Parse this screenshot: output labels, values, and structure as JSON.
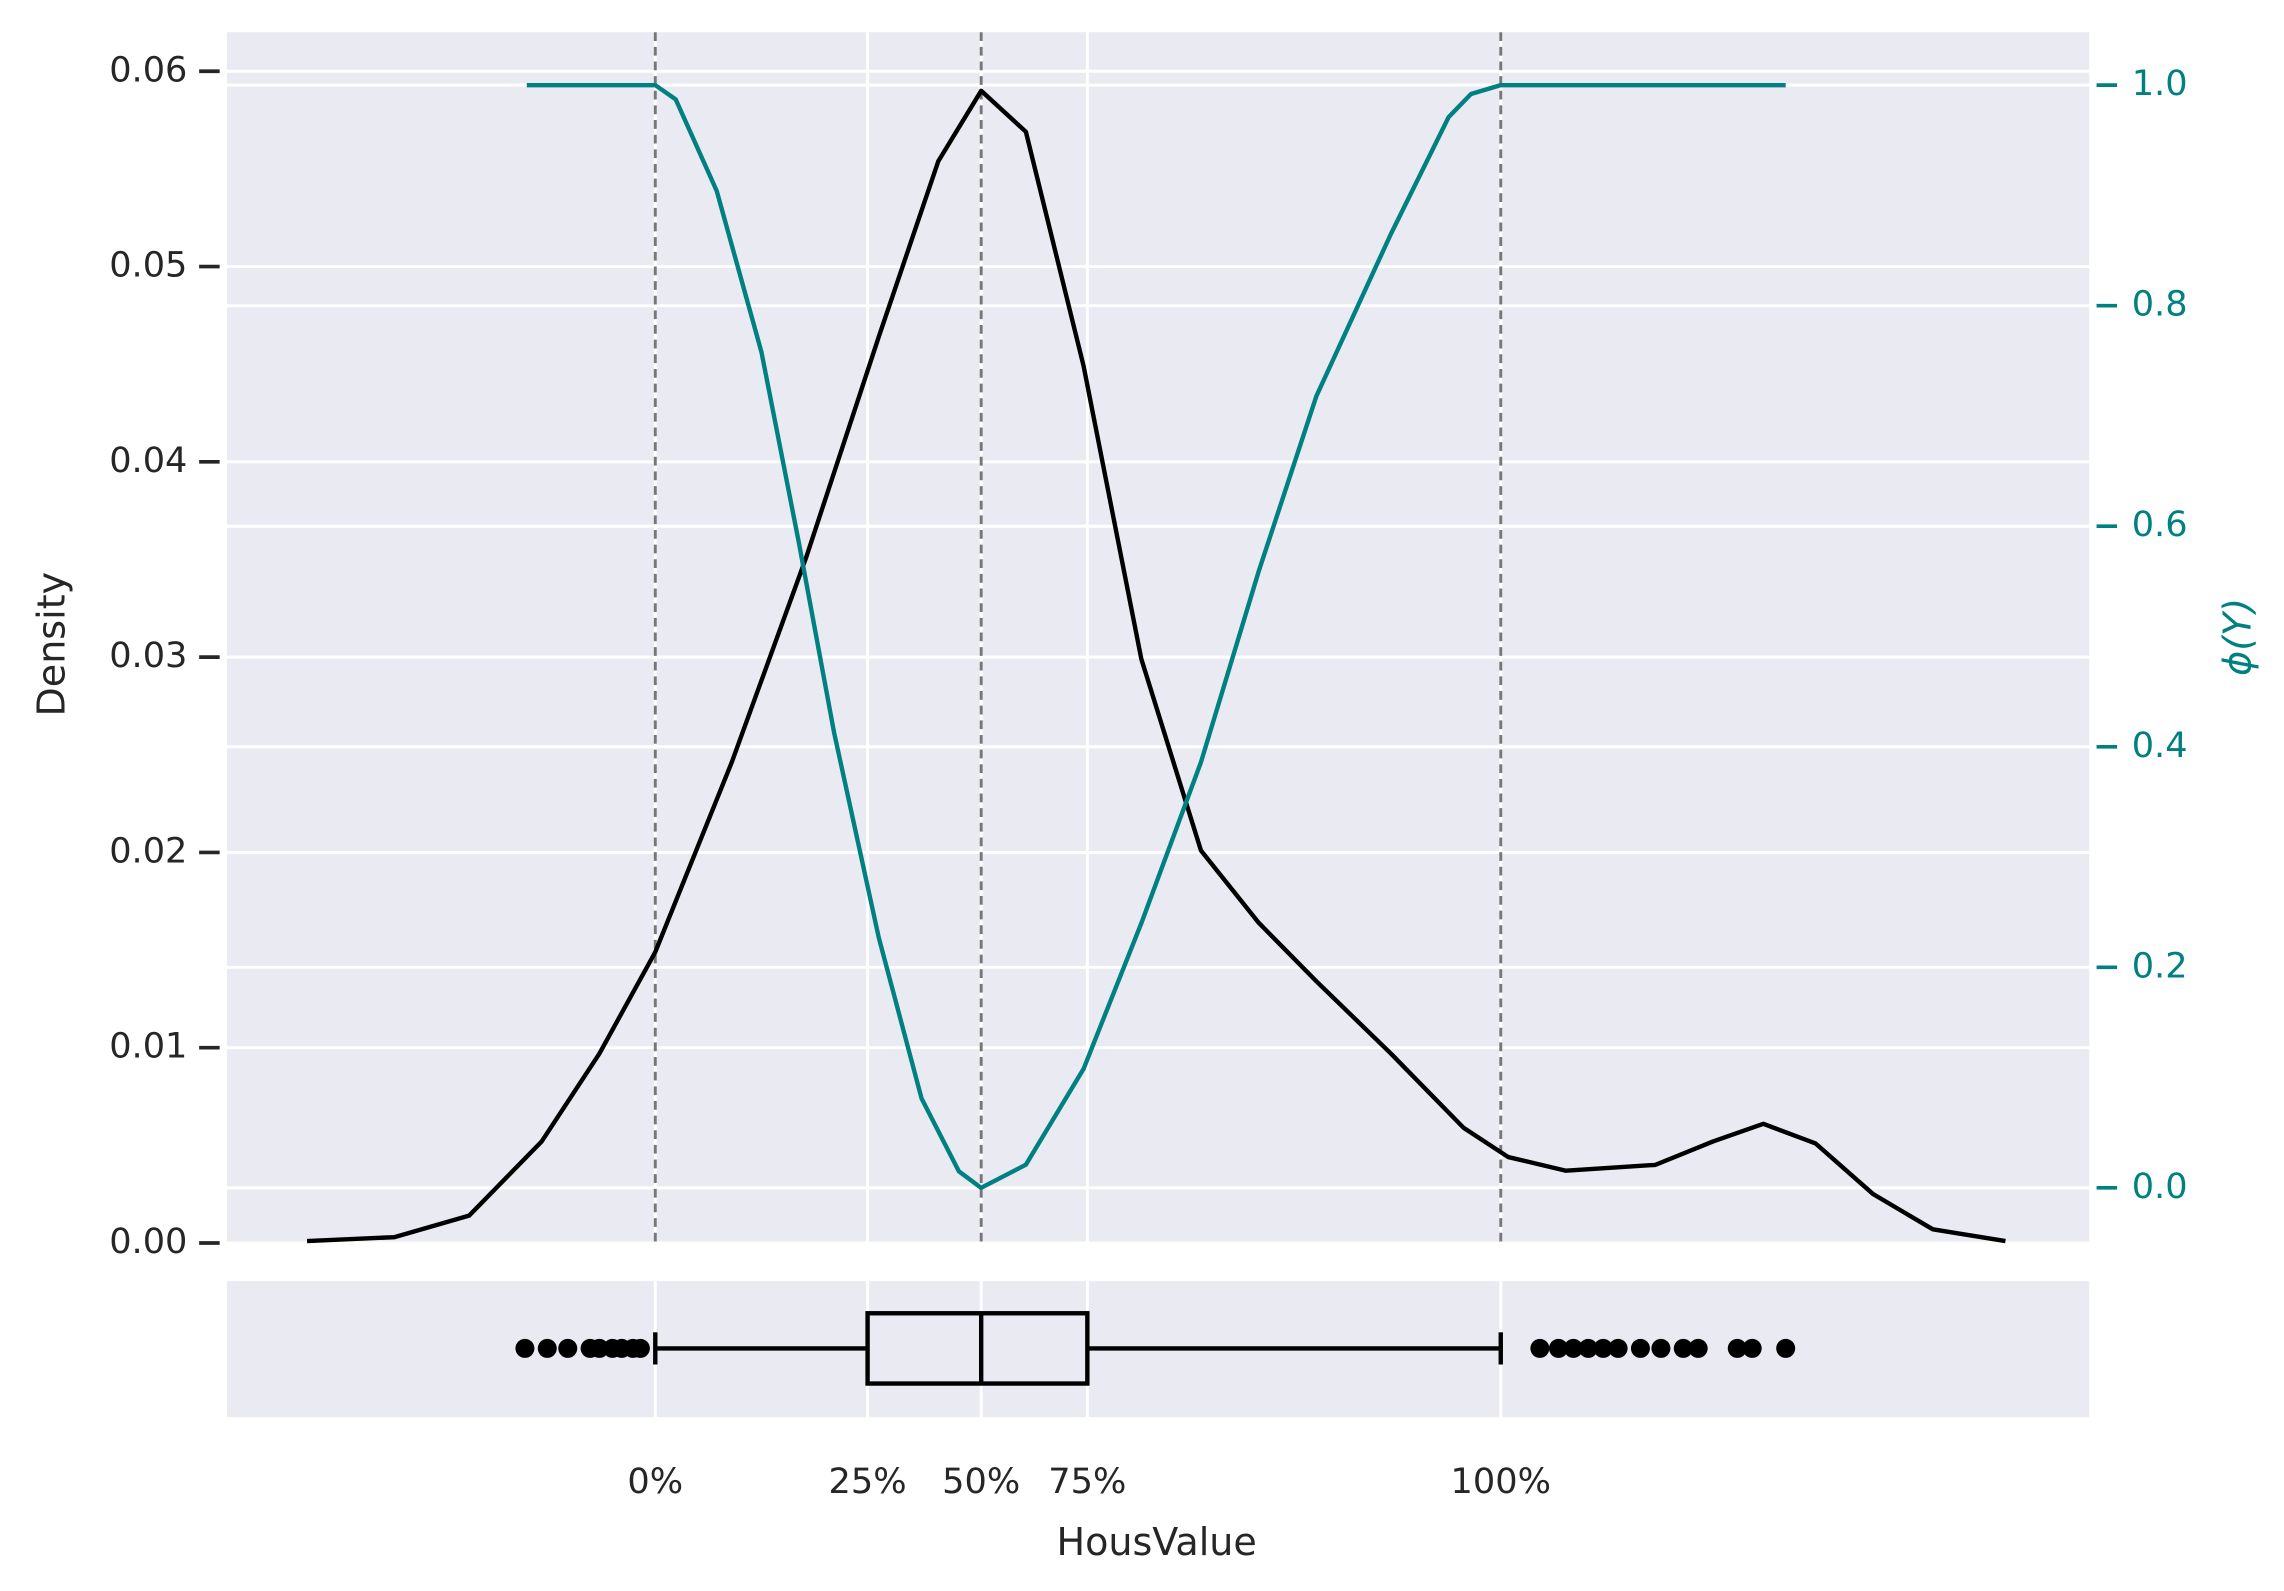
{
  "chart_data": {
    "type": "density_box",
    "x_label": "HousValue",
    "y_label": "Density",
    "y2_label": "ϕ(Y)",
    "grid": true,
    "xlim": [
      0,
      100
    ],
    "xticks": [
      {
        "value": 23.0,
        "label": "0%"
      },
      {
        "value": 34.4,
        "label": "25%"
      },
      {
        "value": 40.5,
        "label": "50%"
      },
      {
        "value": 46.2,
        "label": "75%"
      },
      {
        "value": 68.4,
        "label": "100%"
      }
    ],
    "ylim": [
      0,
      0.062
    ],
    "yticks": [
      {
        "value": 0,
        "label": "0.00"
      },
      0.01,
      0.02,
      0.03,
      0.04,
      0.05,
      0.06
    ],
    "y2lim": [
      -0.05,
      1.048
    ],
    "y2ticks": [
      {
        "value": 0,
        "label": "0.0"
      },
      0.2,
      0.4,
      0.6,
      0.8,
      {
        "value": 1,
        "label": "1.0"
      }
    ],
    "quantile_lines": [
      23.0,
      40.5,
      68.4
    ],
    "density": {
      "color": "#000000",
      "x": [
        4.3,
        9.0,
        13.0,
        16.9,
        20.0,
        23.0,
        27.1,
        31.1,
        35.0,
        38.2,
        40.5,
        42.9,
        46.0,
        49.1,
        52.3,
        55.4,
        58.5,
        62.5,
        66.4,
        68.8,
        71.9,
        76.7,
        79.8,
        82.5,
        85.3,
        88.4,
        91.6,
        95.5
      ],
      "y": [
        0.0001,
        0.0003,
        0.0014,
        0.0052,
        0.0097,
        0.0149,
        0.0246,
        0.0351,
        0.0464,
        0.0554,
        0.059,
        0.0569,
        0.0449,
        0.0299,
        0.0201,
        0.0164,
        0.0134,
        0.0097,
        0.0059,
        0.0044,
        0.0037,
        0.004,
        0.0052,
        0.0061,
        0.0051,
        0.0025,
        0.0007,
        0.0001
      ]
    },
    "phi": {
      "color": "#008080",
      "axis": "y2",
      "x": [
        16.1,
        23.0,
        24.1,
        26.3,
        28.7,
        30.7,
        32.6,
        35.0,
        37.3,
        39.3,
        40.5,
        42.9,
        46.0,
        49.1,
        52.3,
        55.4,
        58.5,
        62.5,
        65.6,
        66.8,
        68.4,
        83.7
      ],
      "y": [
        1.0,
        1.0,
        0.987,
        0.904,
        0.758,
        0.586,
        0.413,
        0.227,
        0.081,
        0.015,
        0.0,
        0.021,
        0.108,
        0.24,
        0.386,
        0.559,
        0.718,
        0.865,
        0.971,
        0.992,
        1.0,
        1.0
      ]
    },
    "box": {
      "whislo": 23.0,
      "q1": 34.4,
      "med": 40.5,
      "q3": 46.2,
      "whishi": 68.4,
      "fliers": [
        16.0,
        17.2,
        18.3,
        19.5,
        20.0,
        20.7,
        21.2,
        21.8,
        22.2,
        70.5,
        71.5,
        72.3,
        73.1,
        73.9,
        74.7,
        75.9,
        77.0,
        78.2,
        79.0,
        81.1,
        81.9,
        83.7
      ]
    }
  }
}
